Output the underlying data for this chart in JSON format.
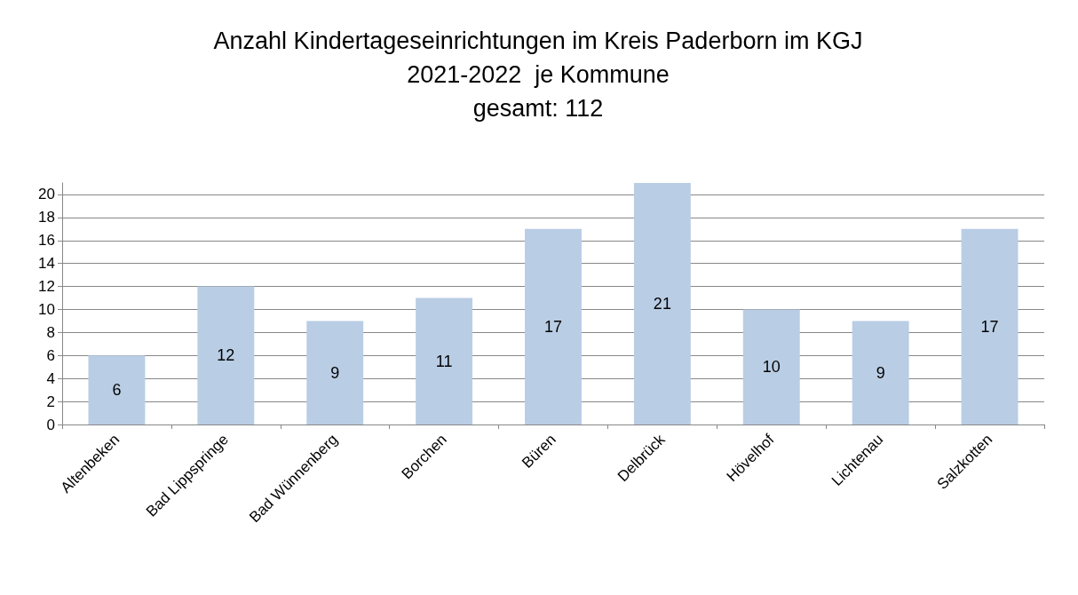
{
  "chart_data": {
    "type": "bar",
    "title": "Anzahl Kindertageseinrichtungen im Kreis Paderborn im KGJ\n2021-2022  je Kommune\ngesamt: 112",
    "categories": [
      "Altenbeken",
      "Bad Lippspringe",
      "Bad Wünnenberg",
      "Borchen",
      "Büren",
      "Delbrück",
      "Hövelhof",
      "Lichtenau",
      "Salzkotten"
    ],
    "values": [
      6,
      12,
      9,
      11,
      17,
      21,
      10,
      9,
      17
    ],
    "color": "#b9cde5",
    "ylim": [
      0,
      21
    ],
    "yticks": [
      0,
      2,
      4,
      6,
      8,
      10,
      12,
      14,
      16,
      18,
      20
    ],
    "grid": "y",
    "data_labels": true
  }
}
